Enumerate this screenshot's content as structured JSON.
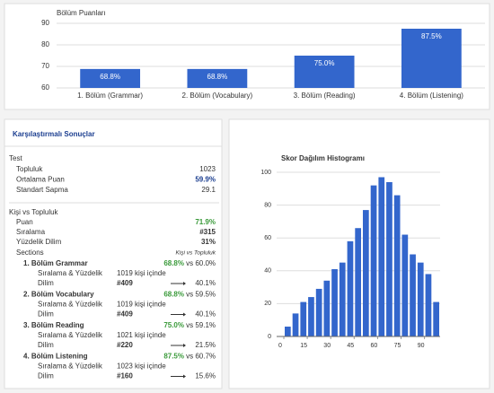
{
  "chart_data": [
    {
      "type": "bar",
      "title": "Bölüm Puanları",
      "categories": [
        "1. Bölüm (Grammar)",
        "2. Bölüm (Vocabulary)",
        "3. Bölüm (Reading)",
        "4. Bölüm (Listening)"
      ],
      "values": [
        68.8,
        68.8,
        75.0,
        87.5
      ],
      "value_labels": [
        "68.8%",
        "68.8%",
        "75.0%",
        "87.5%"
      ],
      "color": "#3366cc",
      "ylim": [
        60,
        90
      ],
      "yticks": [
        60,
        70,
        80,
        90
      ],
      "grid": true
    },
    {
      "type": "histogram",
      "title": "Skor Dağılım Histogramı",
      "bins": [
        0,
        5,
        10,
        15,
        20,
        25,
        30,
        35,
        40,
        45,
        50,
        55,
        60,
        65,
        70,
        75,
        80,
        85,
        90,
        95,
        100
      ],
      "values": [
        6,
        14,
        21,
        24,
        29,
        34,
        41,
        45,
        58,
        66,
        77,
        92,
        97,
        94,
        86,
        62,
        50,
        45,
        38,
        21
      ],
      "color": "#3366cc",
      "xlim": [
        0,
        100
      ],
      "xticks": [
        0,
        15,
        30,
        45,
        60,
        75,
        90
      ],
      "ylim": [
        0,
        100
      ],
      "yticks": [
        0,
        20,
        40,
        60,
        80,
        100
      ],
      "grid": true
    }
  ],
  "comparison": {
    "title": "Karşılaştırmalı Sonuçlar",
    "test": {
      "label": "Test",
      "rows": [
        [
          "Topluluk",
          "1023"
        ],
        [
          "Ortalama Puan",
          "59.9%"
        ],
        [
          "Standart Sapma",
          "29.1"
        ]
      ]
    },
    "person": {
      "label": "Kişi vs Topluluk",
      "rows": [
        [
          "Puan",
          "71.9%"
        ],
        [
          "Sıralama",
          "#315"
        ],
        [
          "Yüzdelik Dilim",
          "31%"
        ]
      ]
    },
    "sections": {
      "label": "Sections",
      "note": "Kişi vs Topluluk",
      "items": [
        {
          "name": "1. Bölüm Grammar",
          "score": "68.8%",
          "compare": "vs 60.0%",
          "rank_label": "Sıralama & Yüzdelik",
          "dilim": "Dilim",
          "of": "1019 kişi içinde",
          "rank": "#409",
          "percentile": "40.1%"
        },
        {
          "name": "2. Bölüm Vocabulary",
          "score": "68.8%",
          "compare": "vs 59.5%",
          "rank_label": "Sıralama & Yüzdelik",
          "dilim": "Dilim",
          "of": "1019 kişi içinde",
          "rank": "#409",
          "percentile": "40.1%"
        },
        {
          "name": "3. Bölüm Reading",
          "score": "75.0%",
          "compare": "vs 59.1%",
          "rank_label": "Sıralama & Yüzdelik",
          "dilim": "Dilim",
          "of": "1021 kişi içinde",
          "rank": "#220",
          "percentile": "21.5%"
        },
        {
          "name": "4. Bölüm Listening",
          "score": "87.5%",
          "compare": "vs 60.7%",
          "rank_label": "Sıralama & Yüzdelik",
          "dilim": "Dilim",
          "of": "1023 kişi içinde",
          "rank": "#160",
          "percentile": "15.6%"
        }
      ]
    }
  }
}
